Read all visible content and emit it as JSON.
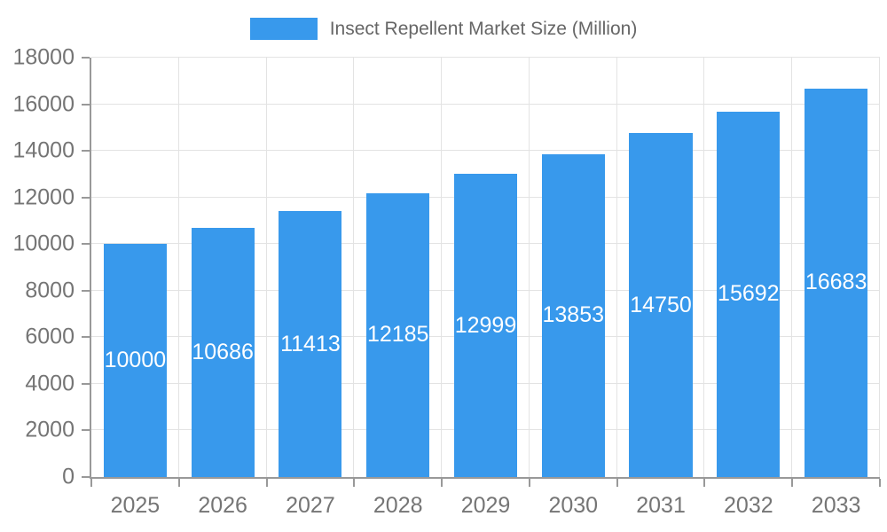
{
  "legend": {
    "label": "Insect Repellent Market Size (Million)"
  },
  "chart_data": {
    "type": "bar",
    "title": "Insect Repellent Market Size (Million)",
    "categories": [
      "2025",
      "2026",
      "2027",
      "2028",
      "2029",
      "2030",
      "2031",
      "2032",
      "2033"
    ],
    "values": [
      10000,
      10686,
      11413,
      12185,
      12999,
      13853,
      14750,
      15692,
      16683
    ],
    "xlabel": "",
    "ylabel": "",
    "ylim": [
      0,
      18000
    ],
    "ytick_step": 2000,
    "ytick_labels": [
      "0",
      "2000",
      "4000",
      "6000",
      "8000",
      "10000",
      "12000",
      "14000",
      "16000",
      "18000"
    ],
    "grid": true,
    "legend_position": "top-center",
    "value_labels": "inside-center",
    "colors": {
      "bar": "#3899ec",
      "value_label": "#ffffff",
      "axis_line": "#999999",
      "gridline": "#e3e3e3",
      "tick_text": "#757575",
      "legend_text": "#666666",
      "background": "#ffffff"
    }
  }
}
